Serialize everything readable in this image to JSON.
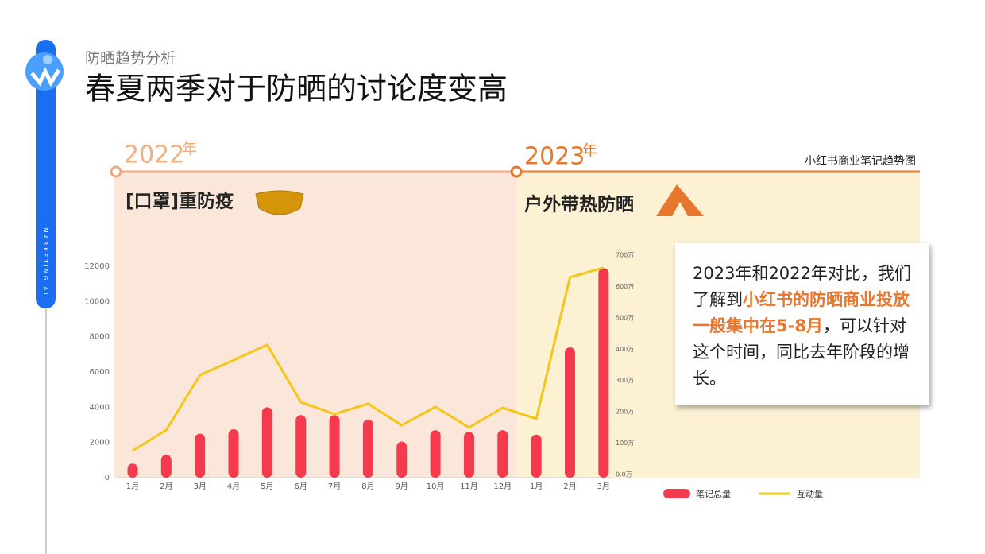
{
  "header": {
    "subtitle": "防晒趋势分析",
    "title": "春夏两季对于防晒的讨论度变高",
    "side_text": "MARKETING AI"
  },
  "timeline": [
    {
      "year": "2022",
      "suffix": "年",
      "label": "[口罩]重防疫"
    },
    {
      "year": "2023",
      "suffix": "年",
      "label": "户外带热防晒"
    }
  ],
  "chart_note": "小红书商业笔记趋势图",
  "callout": {
    "text1": "2023年和2022年对比，我们了解到",
    "highlight": "小红书的防晒商业投放一般集中在5-8月",
    "text2": "，可以针对这个时间，同比去年阶段的增长。"
  },
  "chart_data": {
    "type": "bar",
    "categories": [
      "1月",
      "2月",
      "3月",
      "4月",
      "5月",
      "6月",
      "7月",
      "8月",
      "9月",
      "10月",
      "11月",
      "12月",
      "1月",
      "2月",
      "3月"
    ],
    "series": [
      {
        "name": "笔记总量",
        "color": "#f43a4c",
        "values": [
          800,
          1300,
          2500,
          2750,
          4000,
          3550,
          3550,
          3300,
          2050,
          2700,
          2600,
          2700,
          2450,
          7400,
          11900
        ]
      },
      {
        "name": "互动量",
        "type": "line",
        "axis": "y2",
        "color": "#f5c518",
        "values": [
          76,
          142,
          317,
          365,
          414,
          231,
          193,
          226,
          157,
          216,
          150,
          213,
          178,
          629,
          660
        ]
      }
    ],
    "ylim": [
      0,
      12000
    ],
    "yticks": [
      0,
      2000,
      4000,
      6000,
      8000,
      10000,
      12000
    ],
    "y2lim": [
      0,
      700
    ],
    "y2ticks": [
      {
        "value": 0,
        "label": "0.0万"
      },
      {
        "value": 100,
        "label": "100万"
      },
      {
        "value": 200,
        "label": "200万"
      },
      {
        "value": 300,
        "label": "300万"
      },
      {
        "value": 400,
        "label": "400万"
      },
      {
        "value": 500,
        "label": "500万"
      },
      {
        "value": 600,
        "label": "600万"
      },
      {
        "value": 700,
        "label": "700万"
      }
    ],
    "legend": "bottom"
  }
}
